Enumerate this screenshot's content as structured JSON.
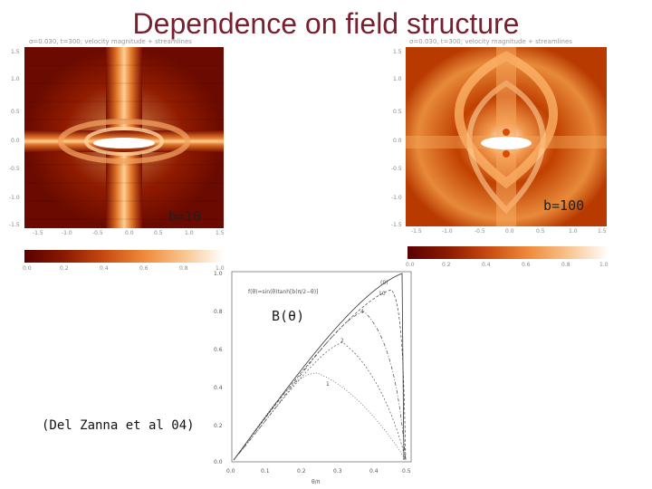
{
  "slide": {
    "title": "Dependence on field structure",
    "reference": "(Del Zanna et al 04)"
  },
  "left_panel": {
    "header": "σ=0.030, t=300; velocity magnitude + streamlines",
    "label": "b=10",
    "y_ticks": [
      "1.5",
      "1.0",
      "0.5",
      "0.0",
      "-0.5",
      "-1.0",
      "-1.5"
    ],
    "x_ticks": [
      "-1.5",
      "-1.0",
      "-0.5",
      "0.0",
      "0.5",
      "1.0",
      "1.5"
    ],
    "colorbar_ticks": [
      "0.0",
      "0.2",
      "0.4",
      "0.6",
      "0.8",
      "1.0"
    ]
  },
  "right_panel": {
    "header": "σ=0.030, t=300; velocity magnitude + streamlines",
    "label": "b=100",
    "y_ticks": [
      "1.5",
      "1.0",
      "0.5",
      "0.0",
      "-0.5",
      "-1.0",
      "-1.5"
    ],
    "x_ticks": [
      "-1.5",
      "-1.0",
      "-0.5",
      "0.0",
      "0.5",
      "1.0",
      "1.5"
    ],
    "colorbar_ticks": [
      "0.0",
      "0.2",
      "0.4",
      "0.6",
      "0.8",
      "1.0"
    ]
  },
  "inset_plot": {
    "label": "B(θ)",
    "formula": "f(θ)=sin(θ)tanh[b(π/2−θ)]",
    "y_ticks": [
      "1.0",
      "0.8",
      "0.6",
      "0.4",
      "0.2",
      "0.0"
    ],
    "x_ticks": [
      "0.0",
      "0.1",
      "0.2",
      "0.3",
      "0.4",
      "0.5"
    ],
    "x_axis_label": "θ/π",
    "curve_labels": [
      "1",
      "2",
      "4",
      "10",
      "(0)"
    ]
  },
  "colors": {
    "title": "#7a1f2e",
    "heat_dark": "#5a0000",
    "heat_mid": "#c84a10",
    "heat_light": "#f8c48e"
  }
}
